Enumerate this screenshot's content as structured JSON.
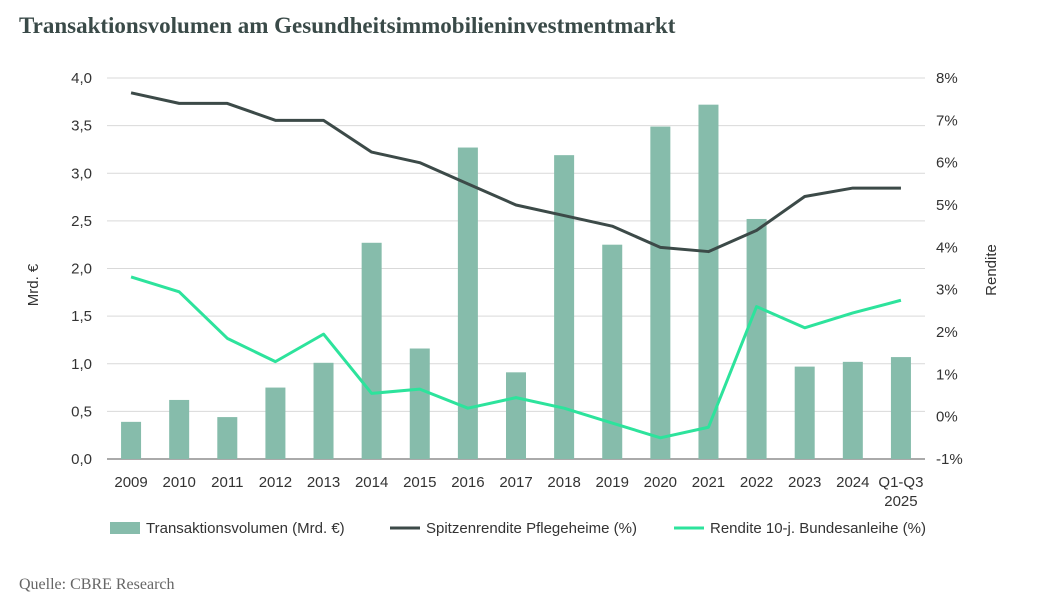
{
  "title": "Transaktionsvolumen am Gesundheitsimmobilieninvestmentmarkt",
  "source": "Quelle: CBRE Research",
  "chart_data": {
    "type": "bar+line",
    "categories": [
      "2009",
      "2010",
      "2011",
      "2012",
      "2013",
      "2014",
      "2015",
      "2016",
      "2017",
      "2018",
      "2019",
      "2020",
      "2021",
      "2022",
      "2023",
      "2024",
      "Q1-Q3 2025"
    ],
    "y_left": {
      "label": "Mrd. €",
      "range": [
        0,
        4
      ],
      "ticks": [
        "0,0",
        "0,5",
        "1,0",
        "1,5",
        "2,0",
        "2,5",
        "3,0",
        "3,5",
        "4,0"
      ]
    },
    "y_right": {
      "label": "Rendite",
      "range": [
        -1,
        8
      ],
      "ticks": [
        "-1%",
        "0%",
        "1%",
        "2%",
        "3%",
        "4%",
        "5%",
        "6%",
        "7%",
        "8%"
      ]
    },
    "series": [
      {
        "name": "Transaktionsvolumen (Mrd. €)",
        "type": "bar",
        "axis": "left",
        "color": "#86bcab",
        "values": [
          0.39,
          0.62,
          0.44,
          0.75,
          1.01,
          2.27,
          1.16,
          3.27,
          0.91,
          3.19,
          2.25,
          3.49,
          3.72,
          2.52,
          0.97,
          1.02,
          1.07
        ]
      },
      {
        "name": "Spitzenrendite Pflegeheime (%)",
        "type": "line",
        "axis": "right",
        "color": "#3c4a48",
        "values": [
          7.65,
          7.4,
          7.4,
          7.0,
          7.0,
          6.25,
          6.0,
          5.5,
          5.0,
          4.75,
          4.5,
          4.0,
          3.9,
          4.4,
          5.2,
          5.4,
          5.4
        ]
      },
      {
        "name": "Rendite 10-j. Bundesanleihe (%)",
        "type": "line",
        "axis": "right",
        "color": "#2de39c",
        "values": [
          3.3,
          2.95,
          1.85,
          1.3,
          1.95,
          0.55,
          0.65,
          0.2,
          0.45,
          0.2,
          -0.15,
          -0.5,
          -0.25,
          2.6,
          2.1,
          2.45,
          2.75
        ]
      }
    ],
    "legend_position": "bottom",
    "grid": true
  }
}
